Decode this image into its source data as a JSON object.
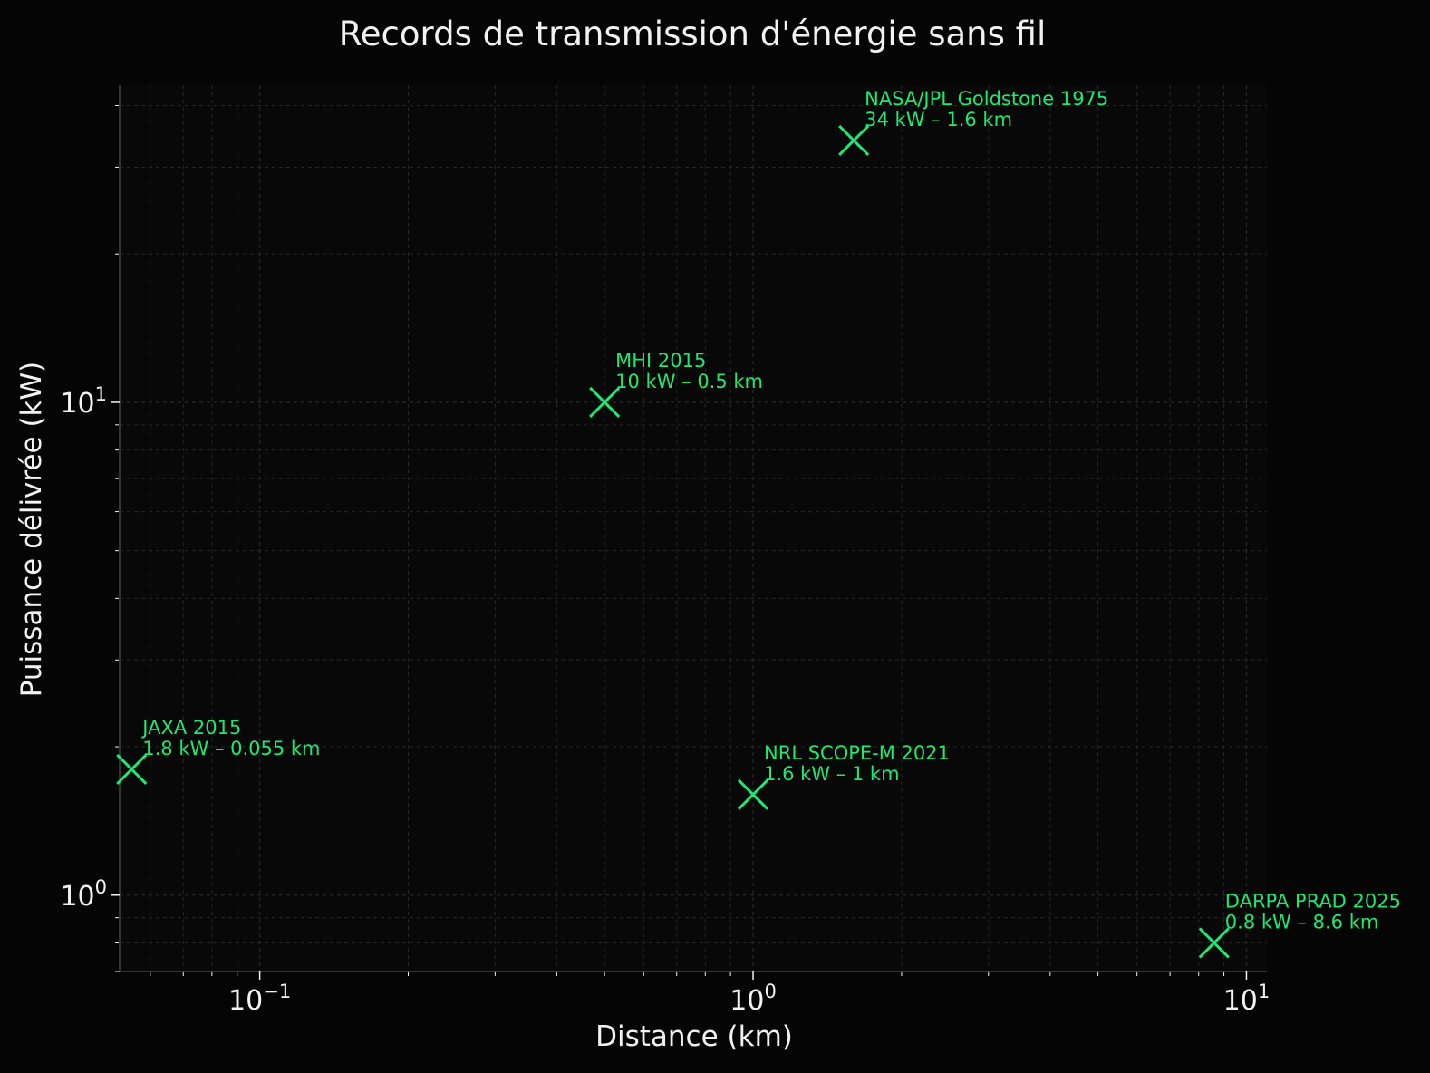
{
  "chart_data": {
    "type": "scatter",
    "title": "Records de transmission d'énergie sans fil",
    "xlabel": "Distance (km)",
    "ylabel": "Puissance délivrée (kW)",
    "xscale": "log",
    "yscale": "log",
    "xlim": [
      0.052,
      11
    ],
    "ylim": [
      0.7,
      44
    ],
    "x_ticks": [
      {
        "value": 0.1,
        "base": "10",
        "exp": "−1"
      },
      {
        "value": 1,
        "base": "10",
        "exp": "0"
      },
      {
        "value": 10,
        "base": "10",
        "exp": "1"
      }
    ],
    "y_ticks": [
      {
        "value": 1,
        "base": "10",
        "exp": "0"
      },
      {
        "value": 10,
        "base": "10",
        "exp": "1"
      }
    ],
    "grid": true,
    "marker": "x",
    "colors": {
      "background": "#050505",
      "plot_background": "#080808",
      "marker": "#1fe870",
      "text": "#f2f2f2",
      "axis": "#333333",
      "grid": "#262626"
    },
    "points": [
      {
        "x": 0.055,
        "y": 1.8,
        "label": "JAXA 2015",
        "detail": "1.8 kW – 0.055 km"
      },
      {
        "x": 0.5,
        "y": 10,
        "label": "MHI 2015",
        "detail": "10 kW – 0.5 km"
      },
      {
        "x": 1.0,
        "y": 1.6,
        "label": "NRL SCOPE-M 2021",
        "detail": "1.6 kW – 1 km"
      },
      {
        "x": 1.6,
        "y": 34,
        "label": "NASA/JPL Goldstone 1975",
        "detail": "34 kW – 1.6 km"
      },
      {
        "x": 8.6,
        "y": 0.8,
        "label": "DARPA PRAD 2025",
        "detail": "0.8 kW – 8.6 km"
      }
    ]
  }
}
